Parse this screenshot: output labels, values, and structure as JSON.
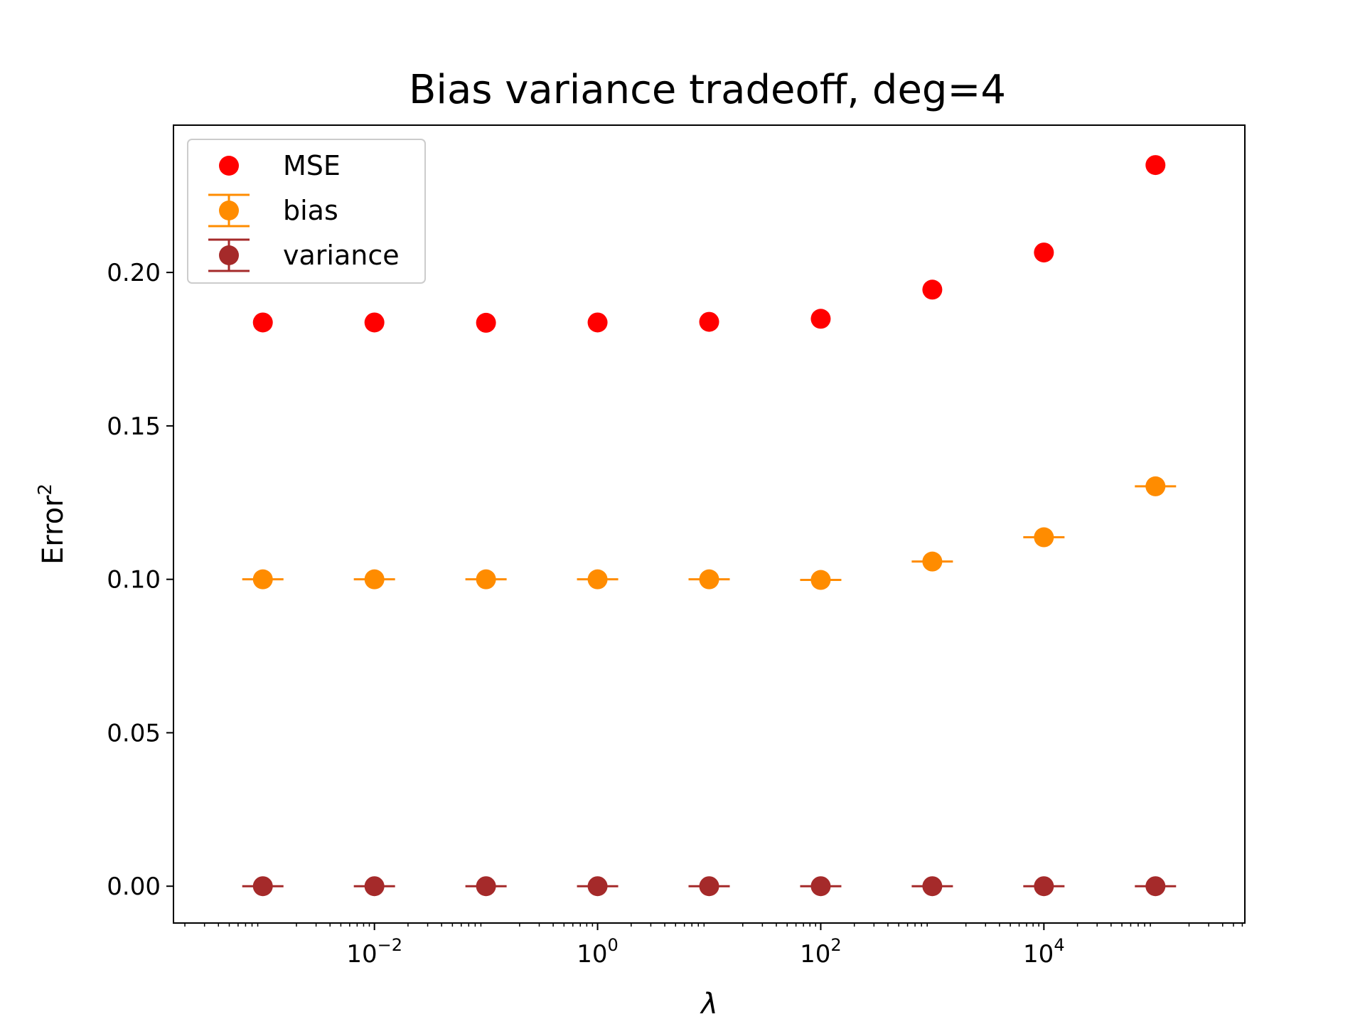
{
  "chart_data": {
    "type": "scatter",
    "title": "Bias variance tradeoff, deg=4",
    "xlabel": "λ",
    "ylabel": "Error",
    "ylabel_superscript": "2",
    "x_scale": "log",
    "x": [
      0.001,
      0.01,
      0.1,
      1,
      10,
      100,
      1000,
      10000,
      100000
    ],
    "xlim": [
      0.0001581,
      632500
    ],
    "ylim": [
      -0.012,
      0.248
    ],
    "x_ticks": [
      {
        "value": 0.01,
        "base": "10",
        "exp": "−2"
      },
      {
        "value": 1,
        "base": "10",
        "exp": "0"
      },
      {
        "value": 100,
        "base": "10",
        "exp": "2"
      },
      {
        "value": 10000,
        "base": "10",
        "exp": "4"
      }
    ],
    "y_ticks": [
      {
        "value": 0.0,
        "label": "0.00"
      },
      {
        "value": 0.05,
        "label": "0.05"
      },
      {
        "value": 0.1,
        "label": "0.10"
      },
      {
        "value": 0.15,
        "label": "0.15"
      },
      {
        "value": 0.2,
        "label": "0.20"
      }
    ],
    "grid": false,
    "legend_position": "top-left",
    "series": [
      {
        "name": "MSE",
        "color": "#ff0000",
        "marker": "circle",
        "errorbar": false,
        "values": [
          0.1837,
          0.1837,
          0.1836,
          0.1837,
          0.1839,
          0.1849,
          0.1944,
          0.2065,
          0.235
        ]
      },
      {
        "name": "bias",
        "color": "#ff8c00",
        "marker": "circle",
        "errorbar": true,
        "values": [
          0.1,
          0.1,
          0.1,
          0.1,
          0.1,
          0.0998,
          0.1058,
          0.1137,
          0.1303
        ]
      },
      {
        "name": "variance",
        "color": "#a52a2a",
        "marker": "circle",
        "errorbar": true,
        "values": [
          0.0,
          0.0,
          0.0,
          0.0,
          0.0,
          0.0,
          0.0,
          0.0,
          0.0
        ]
      }
    ]
  }
}
